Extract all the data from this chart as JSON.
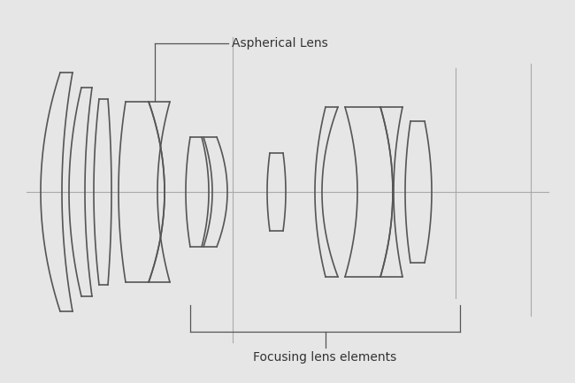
{
  "bg_color": "#e6e6e6",
  "line_color": "#555555",
  "line_width": 1.2,
  "axis_color": "#aaaaaa",
  "axis_lw": 0.8,
  "xlim": [
    0,
    650
  ],
  "ylim": [
    0,
    433
  ],
  "optical_axis_y": 216
}
